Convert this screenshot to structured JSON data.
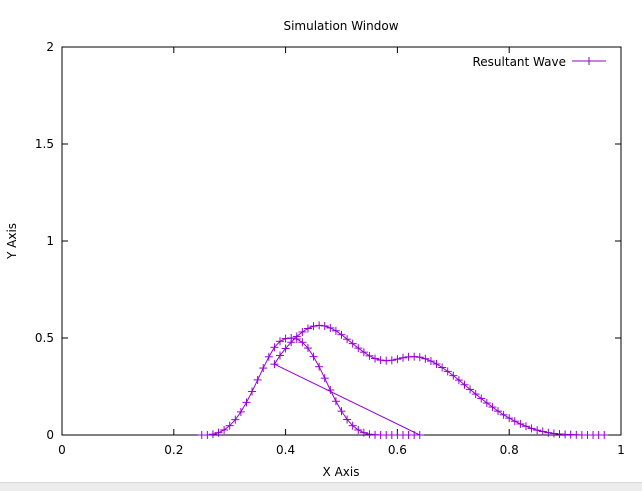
{
  "chart_data": {
    "type": "line",
    "title": "Simulation Window",
    "xlabel": "X Axis",
    "ylabel": "Y Axis",
    "xlim": [
      0,
      1
    ],
    "ylim": [
      0,
      2
    ],
    "xticks": [
      "0",
      "0.2",
      "0.4",
      "0.6",
      "0.8",
      "1"
    ],
    "yticks": [
      "0",
      "0.5",
      "1",
      "1.5",
      "2"
    ],
    "grid": false,
    "legend_position": "top-right",
    "series": [
      {
        "name": "Resultant Wave",
        "color": "#9400d3",
        "marker": "plus",
        "x": [
          0.25,
          0.26,
          0.27,
          0.28,
          0.29,
          0.3,
          0.31,
          0.32,
          0.33,
          0.34,
          0.35,
          0.36,
          0.37,
          0.38,
          0.39,
          0.4,
          0.41,
          0.42,
          0.43,
          0.44,
          0.45,
          0.46,
          0.47,
          0.48,
          0.49,
          0.5,
          0.51,
          0.52,
          0.53,
          0.54,
          0.55,
          0.56,
          0.57,
          0.58,
          0.59,
          0.6,
          0.61,
          0.62,
          0.63,
          0.64,
          0.38,
          0.39,
          0.4,
          0.41,
          0.42,
          0.43,
          0.44,
          0.45,
          0.46,
          0.47,
          0.48,
          0.49,
          0.5,
          0.51,
          0.52,
          0.53,
          0.54,
          0.55,
          0.56,
          0.57,
          0.58,
          0.59,
          0.6,
          0.61,
          0.62,
          0.63,
          0.64,
          0.65,
          0.66,
          0.67,
          0.68,
          0.69,
          0.7,
          0.71,
          0.72,
          0.73,
          0.74,
          0.75,
          0.76,
          0.77,
          0.78,
          0.79,
          0.8,
          0.81,
          0.82,
          0.83,
          0.84,
          0.85,
          0.86,
          0.87,
          0.88,
          0.89,
          0.9,
          0.91,
          0.92,
          0.93,
          0.94,
          0.95,
          0.96,
          0.97
        ],
        "y": [
          0.0,
          0.0,
          0.004,
          0.012,
          0.026,
          0.048,
          0.079,
          0.119,
          0.168,
          0.224,
          0.284,
          0.345,
          0.403,
          0.452,
          0.483,
          0.497,
          0.5,
          0.495,
          0.478,
          0.448,
          0.404,
          0.352,
          0.293,
          0.232,
          0.174,
          0.123,
          0.08,
          0.048,
          0.026,
          0.012,
          0.004,
          0.001,
          0.0,
          0.0,
          0.0,
          0.0,
          0.0,
          0.0,
          0.0,
          0.0,
          0.365,
          0.41,
          0.446,
          0.478,
          0.508,
          0.531,
          0.549,
          0.561,
          0.565,
          0.562,
          0.552,
          0.537,
          0.517,
          0.494,
          0.471,
          0.448,
          0.427,
          0.408,
          0.394,
          0.386,
          0.383,
          0.385,
          0.391,
          0.398,
          0.403,
          0.404,
          0.401,
          0.393,
          0.381,
          0.366,
          0.348,
          0.328,
          0.306,
          0.283,
          0.259,
          0.235,
          0.211,
          0.188,
          0.165,
          0.144,
          0.123,
          0.104,
          0.087,
          0.071,
          0.057,
          0.045,
          0.034,
          0.025,
          0.018,
          0.012,
          0.008,
          0.005,
          0.003,
          0.002,
          0.001,
          0.0,
          0.0,
          0.0,
          0.0,
          0.0
        ]
      }
    ]
  }
}
